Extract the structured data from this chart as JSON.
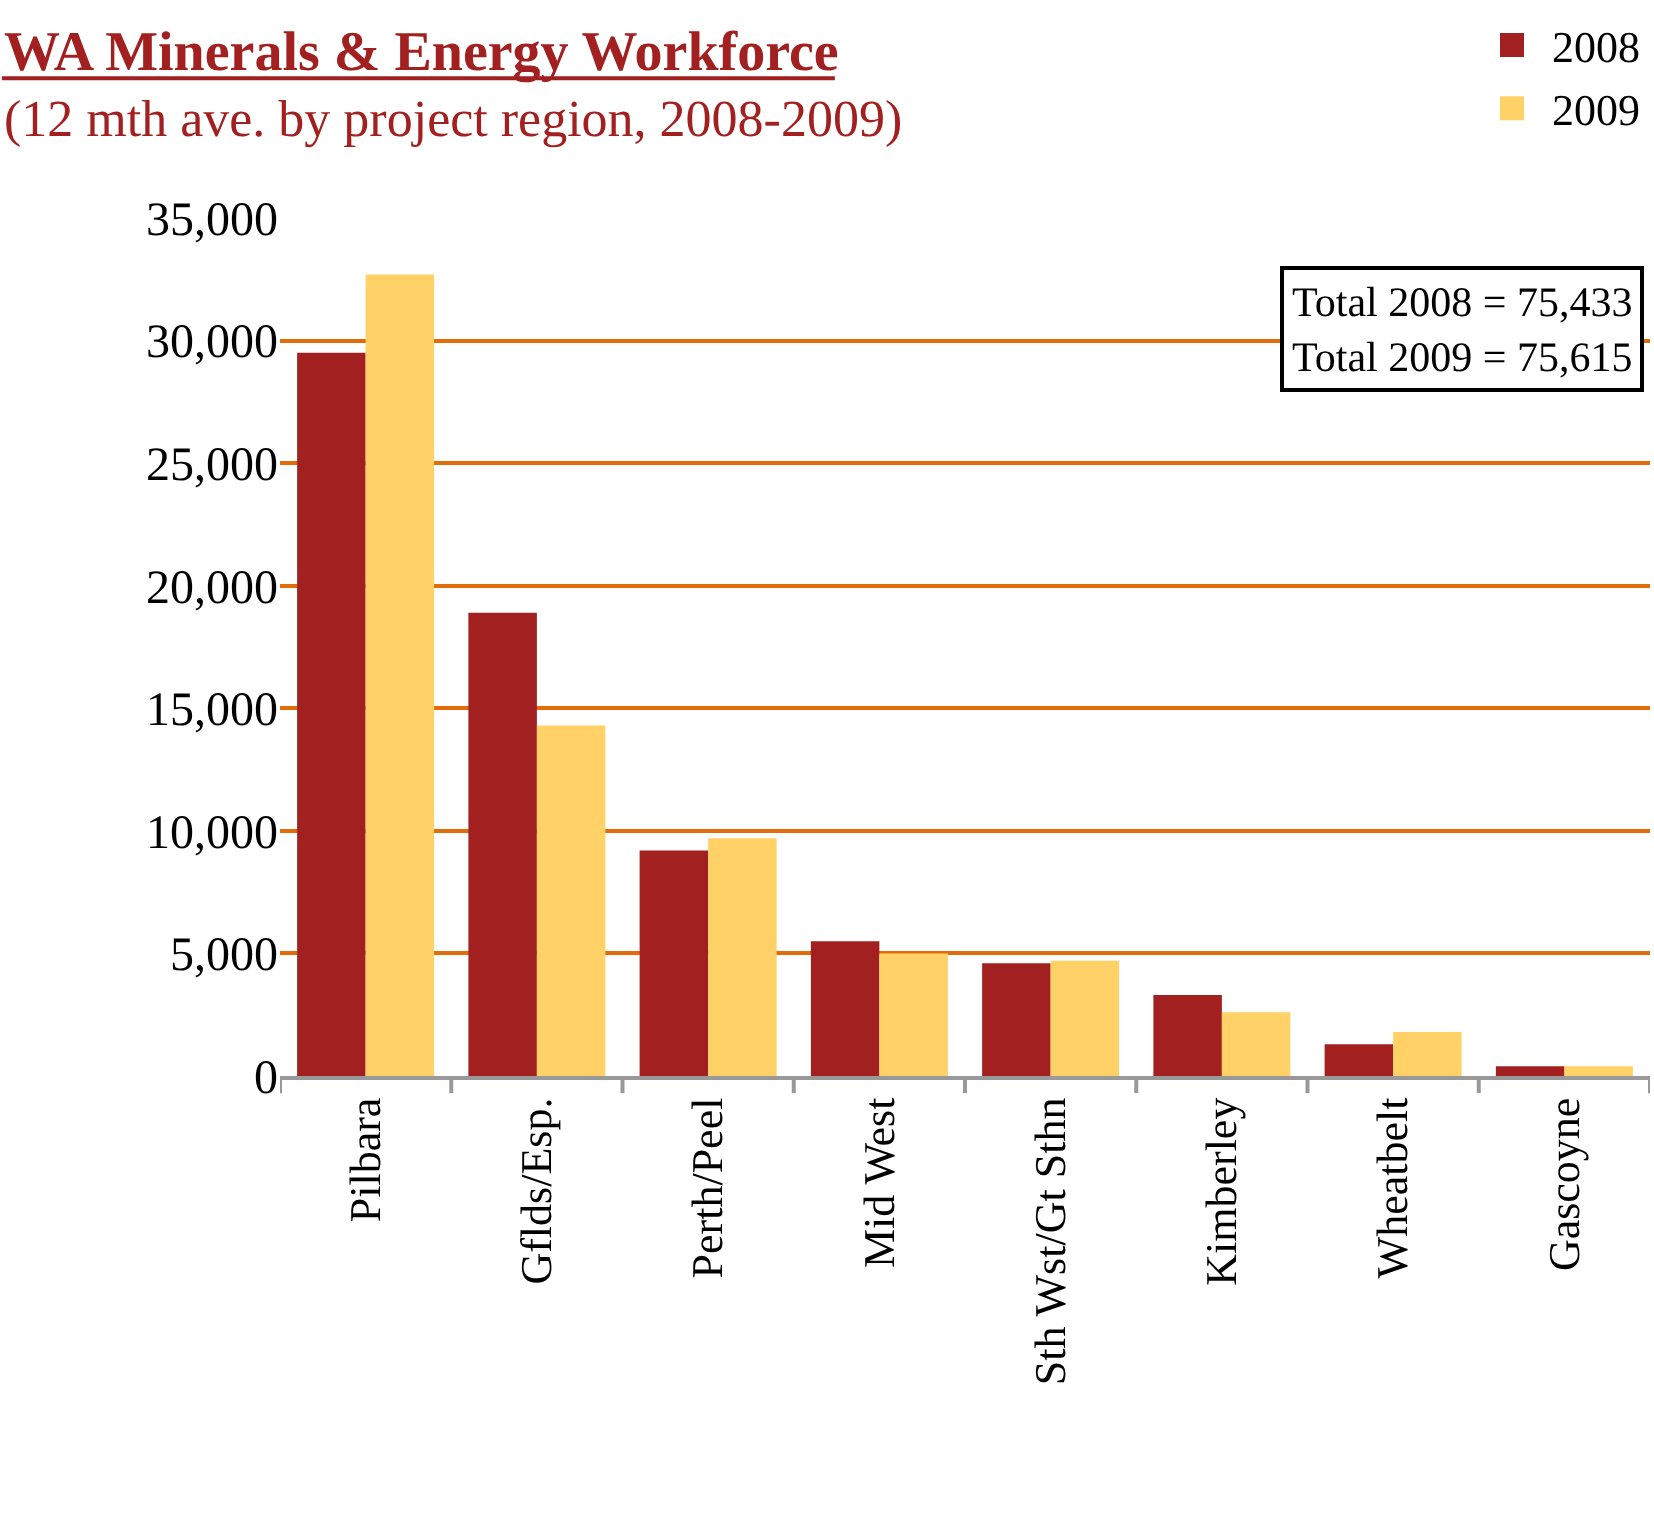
{
  "chart_data": {
    "type": "bar",
    "title": "WA Minerals & Energy Workforce",
    "subtitle": "(12 mth ave. by project region, 2008-2009)",
    "categories": [
      "Pilbara",
      "Gflds/Esp.",
      "Perth/Peel",
      "Mid West",
      "Sth Wst/Gt Sthn",
      "Kimberley",
      "Wheatbelt",
      "Gascoyne"
    ],
    "series": [
      {
        "name": "2008",
        "color": "#a32020",
        "values": [
          29500,
          18900,
          9200,
          5500,
          4600,
          3300,
          1300,
          400
        ]
      },
      {
        "name": "2009",
        "color": "#ffd166",
        "values": [
          32700,
          14300,
          9700,
          5000,
          4700,
          2600,
          1800,
          400
        ]
      }
    ],
    "ylim": [
      0,
      35000
    ],
    "yticks": [
      {
        "value": 0,
        "label": "0"
      },
      {
        "value": 5000,
        "label": "5,000"
      },
      {
        "value": 10000,
        "label": "10,000"
      },
      {
        "value": 15000,
        "label": "15,000"
      },
      {
        "value": 20000,
        "label": "20,000"
      },
      {
        "value": 25000,
        "label": "25,000"
      },
      {
        "value": 30000,
        "label": "30,000"
      },
      {
        "value": 35000,
        "label": "35,000"
      }
    ],
    "grid": "y",
    "legend": "top right",
    "annotations": [
      "Total 2008 = 75,433",
      "Total 2009 = 75,615"
    ]
  }
}
